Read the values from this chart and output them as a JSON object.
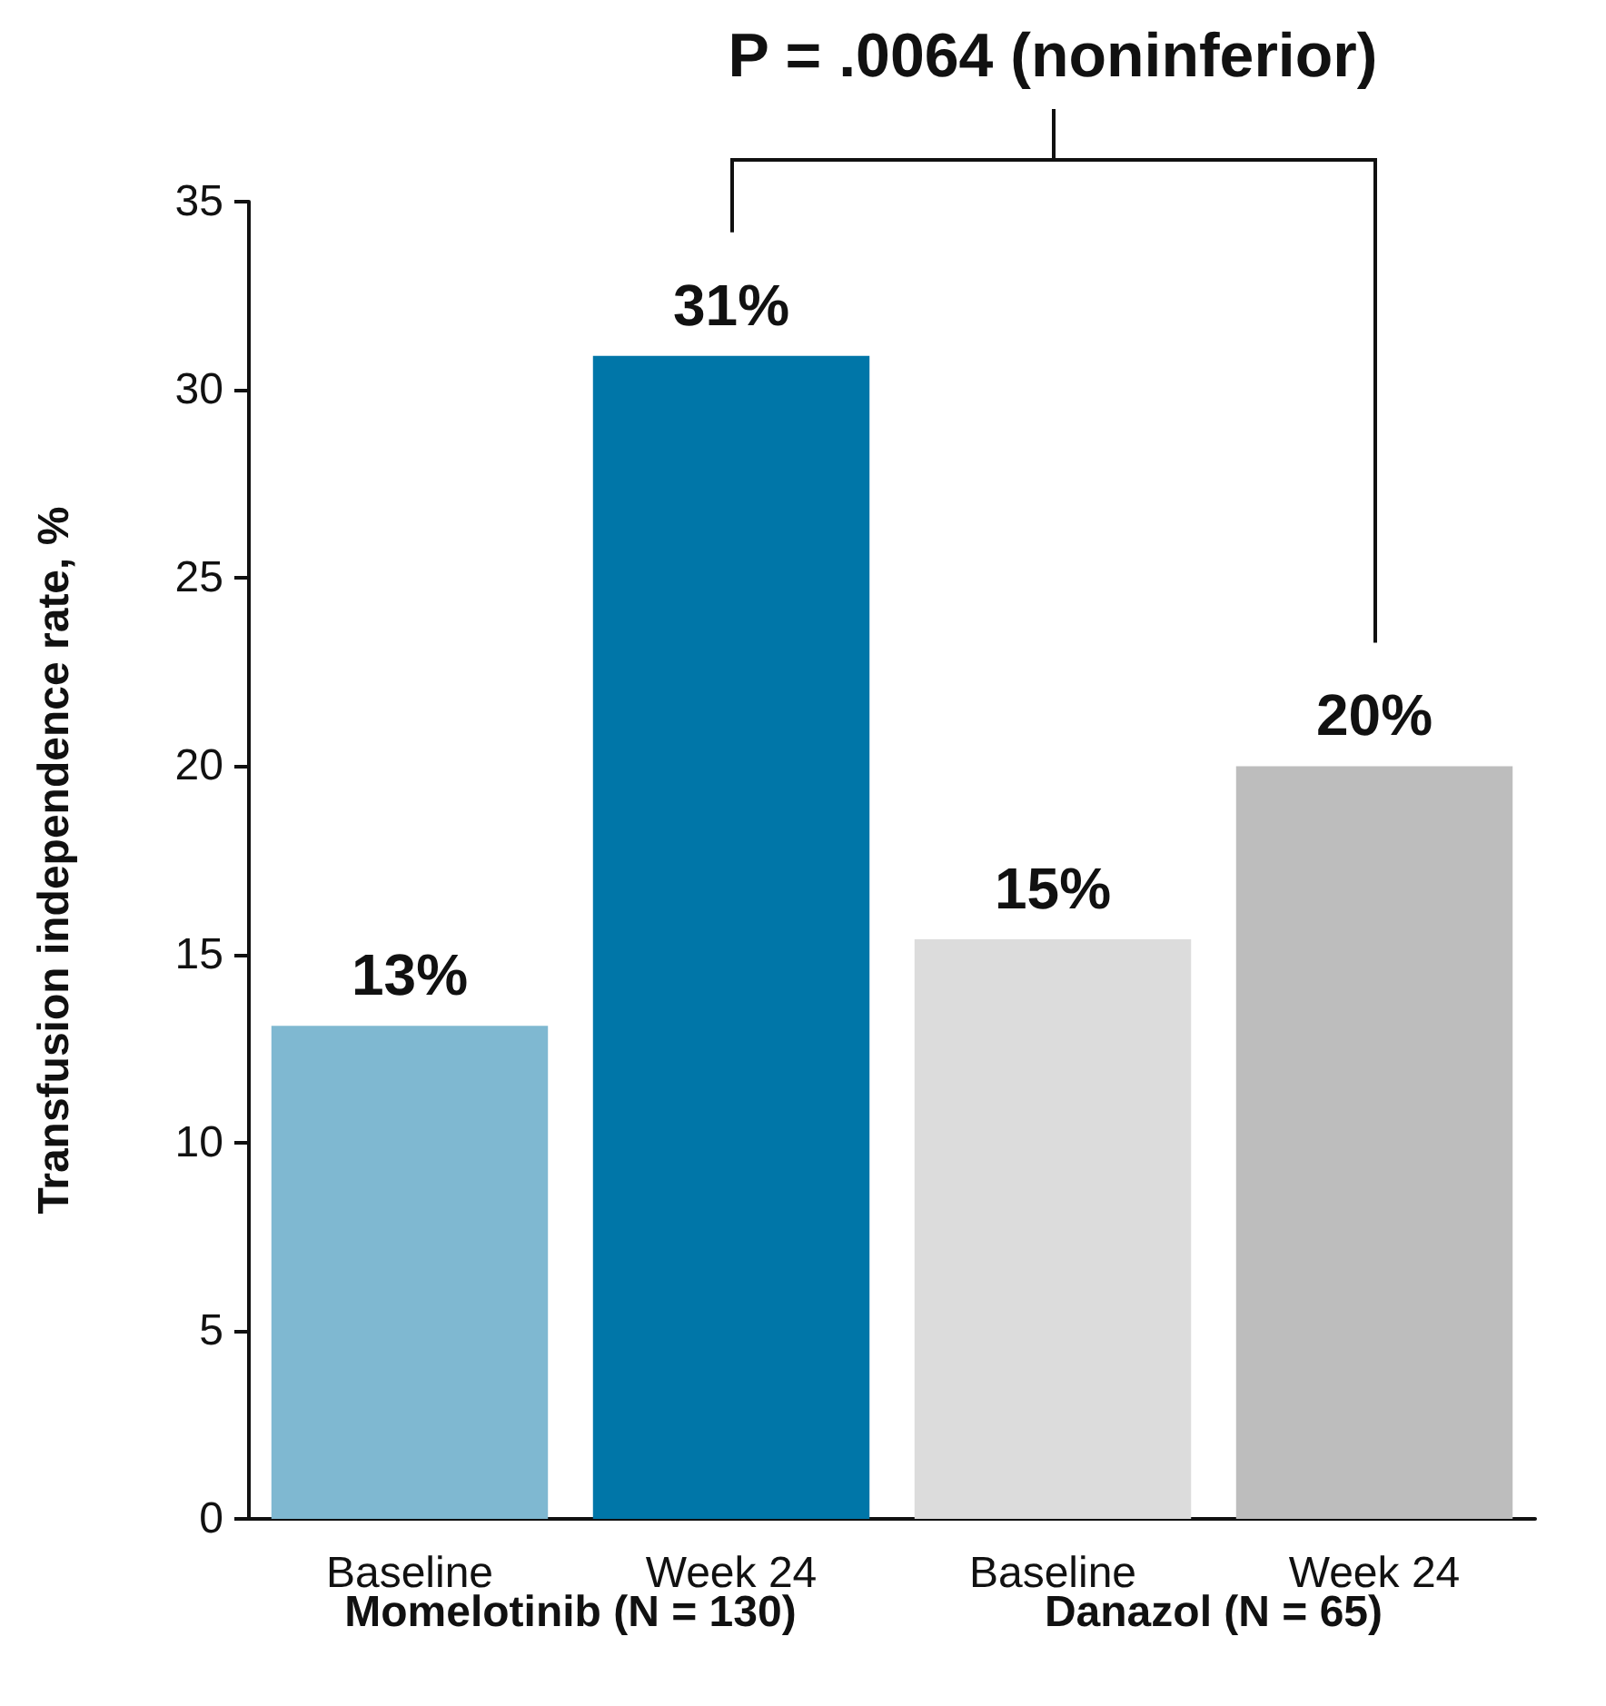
{
  "chart_data": {
    "type": "bar",
    "ylabel": "Transfusion independence rate, %",
    "categories": [
      "Baseline",
      "Week 24",
      "Baseline",
      "Week 24"
    ],
    "values": [
      13.1,
      30.9,
      15.4,
      20.0
    ],
    "value_labels": [
      "13%",
      "31%",
      "15%",
      "20%"
    ],
    "colors": [
      "#7fb8d1",
      "#0076a8",
      "#dcdcdc",
      "#bdbdbd"
    ],
    "ylim": [
      0,
      35
    ],
    "yticks": [
      0,
      5,
      10,
      15,
      20,
      25,
      30,
      35
    ],
    "grid": false,
    "annotations": [
      "P = .0064 (noninferior)",
      "Momelotinib (N = 130)",
      "Danazol (N = 65)"
    ]
  }
}
